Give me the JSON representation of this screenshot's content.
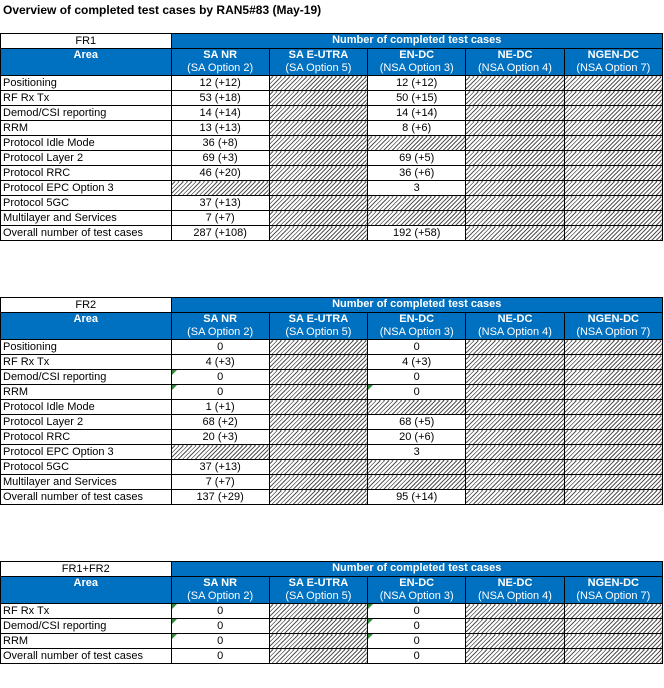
{
  "title": "Overview of completed test cases by RAN5#83 (May-19)",
  "columns": [
    {
      "name": "SA NR",
      "sub": "(SA Option 2)"
    },
    {
      "name": "SA E-UTRA",
      "sub": "(SA Option 5)"
    },
    {
      "name": "EN-DC",
      "sub": "(NSA Option 3)"
    },
    {
      "name": "NE-DC",
      "sub": "(NSA Option 4)"
    },
    {
      "name": "NGEN-DC",
      "sub": "(NSA Option 7)"
    }
  ],
  "header_number": "Number of completed test cases",
  "header_area": "Area",
  "tables": [
    {
      "label": "FR1",
      "rows": [
        {
          "area": "Positioning",
          "cells": [
            "12 (+12)",
            null,
            "12 (+12)",
            null,
            null
          ]
        },
        {
          "area": "RF Rx Tx",
          "cells": [
            "53 (+18)",
            null,
            "50 (+15)",
            null,
            null
          ]
        },
        {
          "area": "Demod/CSI reporting",
          "cells": [
            "14 (+14)",
            null,
            "14 (+14)",
            null,
            null
          ]
        },
        {
          "area": "RRM",
          "cells": [
            "13 (+13)",
            null,
            "8 (+6)",
            null,
            null
          ]
        },
        {
          "area": "Protocol Idle Mode",
          "cells": [
            "36 (+8)",
            null,
            null,
            null,
            null
          ]
        },
        {
          "area": "Protocol Layer 2",
          "cells": [
            "69 (+3)",
            null,
            "69 (+5)",
            null,
            null
          ]
        },
        {
          "area": "Protocol RRC",
          "cells": [
            "46 (+20)",
            null,
            "36 (+6)",
            null,
            null
          ]
        },
        {
          "area": "Protocol EPC Option 3",
          "cells": [
            null,
            null,
            "3",
            null,
            null
          ]
        },
        {
          "area": "Protocol 5GC",
          "cells": [
            "37 (+13)",
            null,
            null,
            null,
            null
          ]
        },
        {
          "area": "Multilayer and Services",
          "cells": [
            "7 (+7)",
            null,
            null,
            null,
            null
          ]
        },
        {
          "area": "Overall number of test cases",
          "cells": [
            "287 (+108)",
            null,
            "192 (+58)",
            null,
            null
          ]
        }
      ]
    },
    {
      "label": "FR2",
      "rows": [
        {
          "area": "Positioning",
          "cells": [
            "0",
            null,
            "0",
            null,
            null
          ]
        },
        {
          "area": "RF Rx Tx",
          "cells": [
            "4 (+3)",
            null,
            "4 (+3)",
            null,
            null
          ]
        },
        {
          "area": "Demod/CSI reporting",
          "cells": [
            "0",
            null,
            "0",
            null,
            null
          ]
        },
        {
          "area": "RRM",
          "cells": [
            "0",
            null,
            "0",
            null,
            null
          ]
        },
        {
          "area": "Protocol Idle Mode",
          "cells": [
            "1 (+1)",
            null,
            null,
            null,
            null
          ]
        },
        {
          "area": "Protocol Layer 2",
          "cells": [
            "68 (+2)",
            null,
            "68 (+5)",
            null,
            null
          ]
        },
        {
          "area": "Protocol RRC",
          "cells": [
            "20 (+3)",
            null,
            "20 (+6)",
            null,
            null
          ]
        },
        {
          "area": "Protocol EPC Option 3",
          "cells": [
            null,
            null,
            "3",
            null,
            null
          ]
        },
        {
          "area": "Protocol 5GC",
          "cells": [
            "37 (+13)",
            null,
            null,
            null,
            null
          ]
        },
        {
          "area": "Multilayer and Services",
          "cells": [
            "7 (+7)",
            null,
            null,
            null,
            null
          ]
        },
        {
          "area": "Overall number of test cases",
          "cells": [
            "137 (+29)",
            null,
            "95 (+14)",
            null,
            null
          ]
        }
      ]
    },
    {
      "label": "FR1+FR2",
      "rows": [
        {
          "area": "RF Rx Tx",
          "cells": [
            "0",
            null,
            "0",
            null,
            null
          ]
        },
        {
          "area": "Demod/CSI reporting",
          "cells": [
            "0",
            null,
            "0",
            null,
            null
          ]
        },
        {
          "area": "RRM",
          "cells": [
            "0",
            null,
            "0",
            null,
            null
          ]
        },
        {
          "area": "Overall number of test cases",
          "cells": [
            "0",
            null,
            "0",
            null,
            null
          ]
        }
      ]
    }
  ]
}
